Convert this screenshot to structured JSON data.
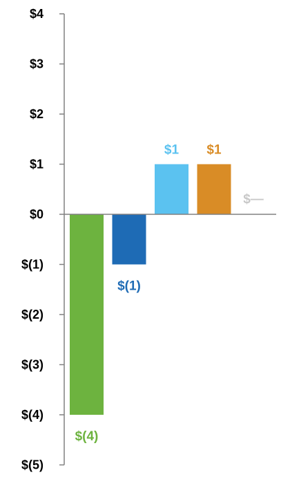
{
  "chart_data": {
    "type": "bar",
    "title": "",
    "xlabel": "",
    "ylabel": "",
    "ylim": [
      -5,
      4
    ],
    "y_ticks": [
      4,
      3,
      2,
      1,
      0,
      -1,
      -2,
      -3,
      -4,
      -5
    ],
    "y_tick_labels": [
      "$4",
      "$3",
      "$2",
      "$1",
      "$0",
      "$(1)",
      "$(2)",
      "$(3)",
      "$(4)",
      "$(5)"
    ],
    "grid": false,
    "legend": "none",
    "bars": [
      {
        "value": -4,
        "label": "$(4)",
        "color": "#6DB33F"
      },
      {
        "value": -1,
        "label": "$(1)",
        "color": "#1E6BB5"
      },
      {
        "value": 1,
        "label": "$1",
        "color": "#5BC2F0"
      },
      {
        "value": 1,
        "label": "$1",
        "color": "#D98C26"
      },
      {
        "value": 0,
        "label": "$—",
        "color": "#C8C8C8"
      }
    ],
    "axis_color": "#808080"
  }
}
